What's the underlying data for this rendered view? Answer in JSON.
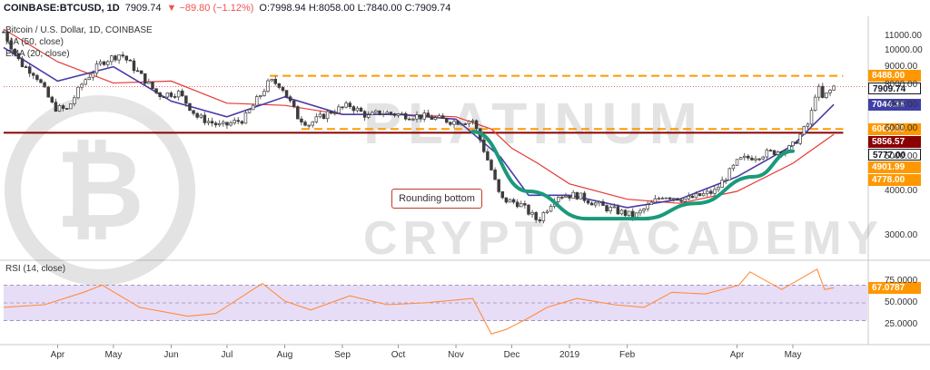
{
  "header": {
    "symbol": "COINBASE:BTCUSD, 1D",
    "last": "7909.74",
    "change": "▼ −89.80 (−1.12%)",
    "ohlc": "O:7998.94 H:8058.00 L:7840.00 C:7909.74"
  },
  "legends": {
    "pair": "Bitcoin / U.S. Dollar, 1D, COINBASE",
    "ma": "MA (50, close)",
    "ema": "EMA (20, close)",
    "rsi": "RSI (14, close)"
  },
  "annotation": "Rounding bottom",
  "watermark": "PLATINUM CRYPTO ACADEMY",
  "price_tags": [
    {
      "label": "8488.00",
      "value": 8488,
      "bg": "#ff9800",
      "fg": "#ffffff"
    },
    {
      "label": "7909.74",
      "value": 7909.74,
      "bg": "#ffffff",
      "fg": "#131722",
      "border": "#131722"
    },
    {
      "label": "7044.36",
      "value": 7044.36,
      "bg": "#3f3fa8",
      "fg": "#ffffff"
    },
    {
      "label": "6000.00",
      "value": 6000,
      "bg": "#ff9800",
      "fg": "#ffffff"
    },
    {
      "label": "5856.57",
      "value": 5856.57,
      "bg": "#8b0000",
      "fg": "#ffffff"
    },
    {
      "label": "5777.00",
      "value": 5777,
      "bg": "#ffffff",
      "fg": "#131722",
      "border": "#131722"
    },
    {
      "label": "4901.99",
      "value": 4901.99,
      "bg": "#ff9800",
      "fg": "#ffffff"
    },
    {
      "label": "4778.00",
      "value": 4778,
      "bg": "#ff9800",
      "fg": "#ffffff"
    }
  ],
  "rsi_tag": {
    "label": "67.0787",
    "value": 67.08,
    "bg": "#ff9800",
    "fg": "#ffffff"
  },
  "colors": {
    "up": "#26a69a",
    "down": "#ef5350",
    "candle": "#3c3c3c",
    "ma": "#e53935",
    "ema": "#4a3aa8",
    "rsi": "#ff8c3a",
    "resistance": "#ff9800",
    "support": "#8b0000",
    "curve": "#1a9a7a",
    "rsi_band": "#e8ddf7"
  },
  "chart_data": [
    {
      "type": "line",
      "title": "Bitcoin / U.S. Dollar, 1D, COINBASE",
      "scale": "log",
      "y_ticks": [
        3000,
        4000,
        5000,
        6000,
        7000,
        8000,
        9000,
        10000,
        11000
      ],
      "y_tick_labels": [
        "3000.00",
        "4000.00",
        "5000.00",
        "6000.00",
        "7000.00",
        "8000.00",
        "9000.00",
        "10000.00",
        "11000.00"
      ],
      "ylim": [
        2600,
        12500
      ],
      "x_labels": [
        "Apr",
        "May",
        "Jun",
        "Jul",
        "Aug",
        "Sep",
        "Oct",
        "Nov",
        "Dec",
        "2019",
        "Feb",
        "Apr",
        "May"
      ],
      "x_label_dates": [
        "2018-04-01",
        "2018-05-01",
        "2018-06-01",
        "2018-07-01",
        "2018-08-01",
        "2018-09-01",
        "2018-10-01",
        "2018-11-01",
        "2018-12-01",
        "2019-01-01",
        "2019-02-01",
        "2019-04-01",
        "2019-05-01"
      ],
      "xlim": [
        "2018-03-03",
        "2019-06-10"
      ],
      "series": [
        {
          "name": "BTCUSD close",
          "x": [
            "2018-03-03",
            "2018-03-12",
            "2018-03-20",
            "2018-03-30",
            "2018-04-06",
            "2018-04-15",
            "2018-04-25",
            "2018-05-05",
            "2018-05-14",
            "2018-05-25",
            "2018-06-05",
            "2018-06-15",
            "2018-06-28",
            "2018-07-10",
            "2018-07-24",
            "2018-07-30",
            "2018-08-08",
            "2018-08-14",
            "2018-08-25",
            "2018-09-05",
            "2018-09-15",
            "2018-09-21",
            "2018-10-01",
            "2018-10-15",
            "2018-10-31",
            "2018-11-10",
            "2018-11-14",
            "2018-11-20",
            "2018-11-25",
            "2018-12-05",
            "2018-12-15",
            "2018-12-25",
            "2019-01-05",
            "2019-01-20",
            "2019-02-05",
            "2019-02-20",
            "2019-03-05",
            "2019-03-20",
            "2019-04-02",
            "2019-04-15",
            "2019-04-30",
            "2019-05-10",
            "2019-05-14",
            "2019-05-17",
            "2019-05-23"
          ],
          "values": [
            11300,
            9200,
            8600,
            6900,
            6800,
            8200,
            9300,
            9800,
            8700,
            7500,
            7600,
            6500,
            6100,
            6400,
            8200,
            8000,
            6500,
            6200,
            6700,
            7000,
            6500,
            6700,
            6600,
            6500,
            6300,
            6350,
            5600,
            4600,
            3800,
            3700,
            3300,
            3900,
            3900,
            3600,
            3400,
            3900,
            3800,
            4000,
            4900,
            5100,
            5300,
            6300,
            8000,
            7300,
            7910
          ]
        },
        {
          "name": "MA (50, close)",
          "x": [
            "2018-03-03",
            "2018-04-01",
            "2018-05-01",
            "2018-06-01",
            "2018-07-01",
            "2018-08-01",
            "2018-09-01",
            "2018-10-01",
            "2018-11-01",
            "2018-11-20",
            "2018-12-01",
            "2018-12-15",
            "2019-01-01",
            "2019-02-01",
            "2019-03-01",
            "2019-04-01",
            "2019-05-01",
            "2019-05-23"
          ],
          "values": [
            11500,
            9300,
            8100,
            8200,
            7100,
            7000,
            6600,
            6600,
            6500,
            6000,
            5300,
            4800,
            4200,
            3800,
            3700,
            4000,
            4800,
            5800
          ]
        },
        {
          "name": "EMA (20, close)",
          "x": [
            "2018-03-03",
            "2018-04-01",
            "2018-05-01",
            "2018-06-01",
            "2018-07-01",
            "2018-08-01",
            "2018-09-01",
            "2018-10-01",
            "2018-11-01",
            "2018-11-25",
            "2018-12-10",
            "2019-01-01",
            "2019-02-01",
            "2019-03-01",
            "2019-04-01",
            "2019-05-01",
            "2019-05-23"
          ],
          "values": [
            10200,
            8200,
            9000,
            7200,
            6500,
            7400,
            6600,
            6600,
            6400,
            5000,
            3900,
            3900,
            3600,
            3800,
            4400,
            5400,
            7044
          ]
        },
        {
          "name": "Resistance 8488.00",
          "x": [
            "2018-07-24",
            "2019-05-28"
          ],
          "values": [
            8488,
            8488
          ]
        },
        {
          "name": "Support 6000.00",
          "x": [
            "2018-08-10",
            "2019-05-28"
          ],
          "values": [
            6000,
            6000
          ]
        },
        {
          "name": "5856.57",
          "x": [
            "2018-03-03",
            "2019-05-28"
          ],
          "values": [
            5856.57,
            5856.57
          ]
        },
        {
          "name": "Rounding bottom",
          "x": [
            "2018-11-10",
            "2018-12-10",
            "2019-01-10",
            "2019-02-10",
            "2019-03-10",
            "2019-04-10",
            "2019-05-01"
          ],
          "values": [
            5900,
            4000,
            3350,
            3350,
            3700,
            4400,
            5200
          ]
        }
      ]
    },
    {
      "type": "line",
      "title": "RSI (14, close)",
      "y_ticks": [
        25,
        50,
        75
      ],
      "y_tick_labels": [
        "25.0000",
        "50.0000",
        "75.0000"
      ],
      "ylim": [
        5,
        95
      ],
      "bands": [
        30,
        70
      ],
      "series": [
        {
          "name": "RSI (14, close)",
          "x": [
            "2018-03-03",
            "2018-03-25",
            "2018-04-15",
            "2018-04-25",
            "2018-05-15",
            "2018-06-10",
            "2018-06-25",
            "2018-07-20",
            "2018-08-01",
            "2018-08-15",
            "2018-09-05",
            "2018-09-25",
            "2018-10-15",
            "2018-11-10",
            "2018-11-20",
            "2018-11-28",
            "2018-12-10",
            "2018-12-20",
            "2019-01-05",
            "2019-01-25",
            "2019-02-10",
            "2019-02-25",
            "2019-03-15",
            "2019-04-02",
            "2019-04-08",
            "2019-04-25",
            "2019-05-14",
            "2019-05-18",
            "2019-05-23"
          ],
          "values": [
            45,
            48,
            62,
            70,
            45,
            35,
            38,
            72,
            52,
            42,
            58,
            48,
            50,
            55,
            15,
            20,
            33,
            45,
            55,
            48,
            45,
            62,
            60,
            70,
            85,
            65,
            88,
            65,
            67.08
          ]
        }
      ]
    }
  ]
}
